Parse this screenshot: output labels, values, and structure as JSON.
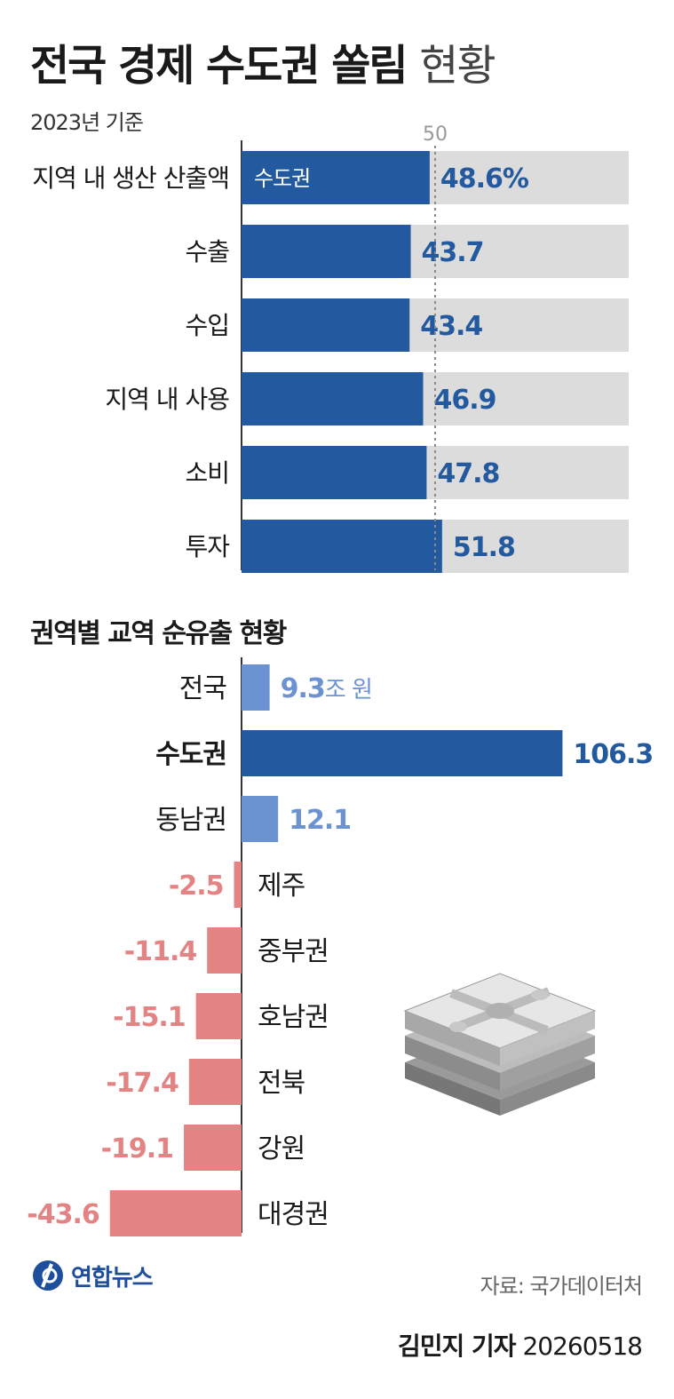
{
  "header": {
    "title_main": "전국 경제 수도권 쏠림",
    "title_light": "현황",
    "subtitle": "2023년 기준"
  },
  "chart_data": [
    {
      "type": "bar",
      "orientation": "horizontal",
      "categories": [
        "지역 내 생산 산출액",
        "수출",
        "수입",
        "지역 내 사용",
        "소비",
        "투자"
      ],
      "series": [
        {
          "name": "수도권",
          "values": [
            48.6,
            43.7,
            43.4,
            46.9,
            47.8,
            51.8
          ]
        }
      ],
      "value_labels": [
        "48.6%",
        "43.7",
        "43.4",
        "46.9",
        "47.8",
        "51.8"
      ],
      "xlim": [
        0,
        100
      ],
      "reference_line": {
        "value": 50,
        "label": "50"
      },
      "colors": {
        "bar": "#235a9f",
        "track": "#dcdcdc",
        "label": "#235a9f"
      }
    },
    {
      "type": "bar",
      "orientation": "horizontal",
      "title": "권역별 교역 순유출 현황",
      "categories": [
        "전국",
        "수도권",
        "동남권",
        "제주",
        "중부권",
        "호남권",
        "전북",
        "강원",
        "대경권"
      ],
      "values": [
        9.3,
        106.3,
        12.1,
        -2.5,
        -11.4,
        -15.1,
        -17.4,
        -19.1,
        -43.6
      ],
      "value_labels": [
        "9.3",
        "106.3",
        "12.1",
        "-2.5",
        "-11.4",
        "-15.1",
        "-17.4",
        "-19.1",
        "-43.6"
      ],
      "unit": "조 원",
      "highlight_category": "수도권",
      "colors": {
        "strong_positive": "#235a9f",
        "positive": "#6b92d1",
        "negative": "#e38383"
      }
    }
  ],
  "footer": {
    "logo_text": "연합뉴스",
    "source": "자료: 국가데이터처",
    "reporter": "김민지 기자",
    "date": "20260518"
  }
}
